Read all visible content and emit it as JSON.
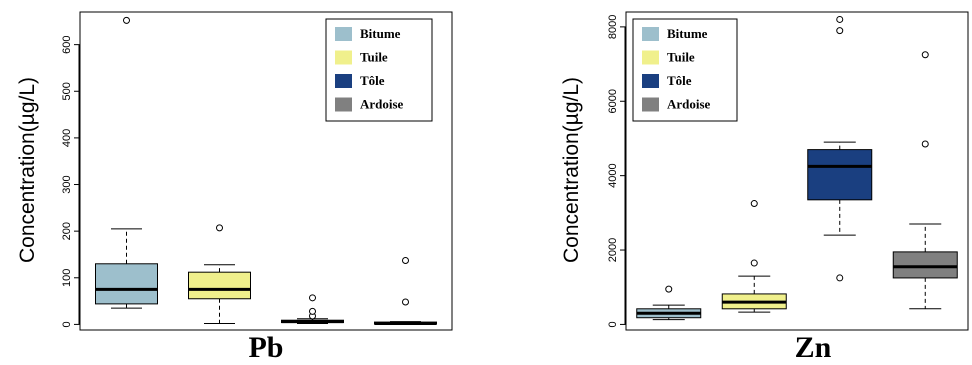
{
  "legend": [
    {
      "label": "Bitume",
      "color": "#9dbfcc"
    },
    {
      "label": "Tuile",
      "color": "#f0f08c"
    },
    {
      "label": "Tôle",
      "color": "#1a3f80"
    },
    {
      "label": "Ardoise",
      "color": "#808080"
    }
  ],
  "chart_data": [
    {
      "type": "box",
      "title": "Pb",
      "ylabel": "Concentration(µg/L)",
      "ylim": [
        -12,
        670
      ],
      "yticks": [
        0,
        100,
        200,
        300,
        400,
        500,
        600
      ],
      "legend_position": "top-right",
      "grid": false,
      "categories": [
        "Bitume",
        "Tuile",
        "Tôle",
        "Ardoise"
      ],
      "boxes": [
        {
          "category": "Bitume",
          "whisker_low": 35,
          "q1": 44,
          "median": 75,
          "q3": 130,
          "whisker_high": 205,
          "outliers": [
            652
          ]
        },
        {
          "category": "Tuile",
          "whisker_low": 2,
          "q1": 55,
          "median": 75,
          "q3": 112,
          "whisker_high": 128,
          "outliers": [
            207
          ]
        },
        {
          "category": "Tôle",
          "whisker_low": 2,
          "q1": 4,
          "median": 6,
          "q3": 9,
          "whisker_high": 12,
          "outliers": [
            18,
            28,
            57
          ]
        },
        {
          "category": "Ardoise",
          "whisker_low": 0,
          "q1": 1,
          "median": 2,
          "q3": 5,
          "whisker_high": 6,
          "outliers": [
            48,
            137
          ]
        }
      ]
    },
    {
      "type": "box",
      "title": "Zn",
      "ylabel": "Concentration(µg/L)",
      "ylim": [
        -150,
        8400
      ],
      "yticks": [
        0,
        2000,
        4000,
        6000,
        8000
      ],
      "legend_position": "top-left",
      "grid": false,
      "categories": [
        "Bitume",
        "Tuile",
        "Tôle",
        "Ardoise"
      ],
      "boxes": [
        {
          "category": "Bitume",
          "whisker_low": 130,
          "q1": 180,
          "median": 300,
          "q3": 420,
          "whisker_high": 520,
          "outliers": [
            950
          ]
        },
        {
          "category": "Tuile",
          "whisker_low": 330,
          "q1": 420,
          "median": 600,
          "q3": 820,
          "whisker_high": 1300,
          "outliers": [
            1650,
            3250
          ]
        },
        {
          "category": "Tôle",
          "whisker_low": 2400,
          "q1": 3350,
          "median": 4250,
          "q3": 4700,
          "whisker_high": 4900,
          "outliers": [
            1250,
            7900,
            8200
          ]
        },
        {
          "category": "Ardoise",
          "whisker_low": 420,
          "q1": 1250,
          "median": 1550,
          "q3": 1950,
          "whisker_high": 2700,
          "outliers": [
            4850,
            7250
          ]
        }
      ]
    }
  ]
}
